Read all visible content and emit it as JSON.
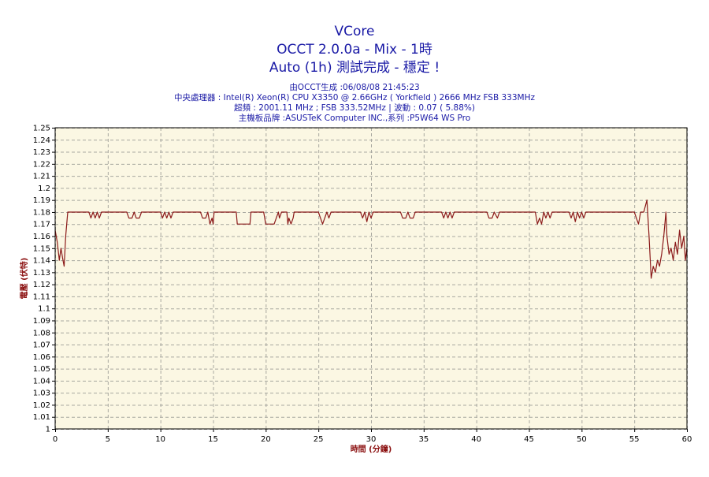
{
  "window": {
    "titles": [
      "VCore",
      "OCCT 2.0.0a - Mix - 1時",
      "Auto (1h) 測試完成 - 穩定 !"
    ],
    "info_lines": [
      "由OCCT生成 :06/08/08 21:45:23",
      "中央處理器 : Intel(R) Xeon(R) CPU X3350 @ 2.66GHz ( Yorkfield ) 2666 MHz FSB 333MHz",
      "超頻 : 2001.11 MHz ; FSB 333.52MHz | 波動 : 0.07 ( 5.88%)",
      "主機板品牌 :ASUSTeK Computer INC.,系列 :P5W64 WS Pro"
    ]
  },
  "colors": {
    "plot_bg": "#fbf7e3",
    "grid": "#a8a8a0",
    "line": "#8b1a1a",
    "title": "#1a1aa6",
    "axis_label": "#8b1010"
  },
  "chart_data": {
    "type": "line",
    "title": "VCore",
    "xlabel": "時間 (分鐘)",
    "ylabel": "電壓 (伏特)",
    "xlim": [
      0,
      60
    ],
    "ylim": [
      1.0,
      1.25
    ],
    "x_ticks": [
      0,
      5,
      10,
      15,
      20,
      25,
      30,
      35,
      40,
      45,
      50,
      55,
      60
    ],
    "x_tick_labels": [
      "0",
      "5",
      "10",
      "15",
      "20",
      "25",
      "30",
      "35",
      "40",
      "45",
      "50",
      "55",
      "60"
    ],
    "y_ticks": [
      1.0,
      1.01,
      1.02,
      1.03,
      1.04,
      1.05,
      1.06,
      1.07,
      1.08,
      1.09,
      1.1,
      1.11,
      1.12,
      1.13,
      1.14,
      1.15,
      1.16,
      1.17,
      1.18,
      1.19,
      1.2,
      1.21,
      1.22,
      1.23,
      1.24,
      1.25
    ],
    "y_tick_labels": [
      "1",
      "1.01",
      "1.02",
      "1.03",
      "1.04",
      "1.05",
      "1.06",
      "1.07",
      "1.08",
      "1.09",
      "1.1",
      "1.11",
      "1.12",
      "1.13",
      "1.14",
      "1.15",
      "1.16",
      "1.17",
      "1.18",
      "1.19",
      "1.2",
      "1.21",
      "1.22",
      "1.23",
      "1.24",
      "1.25"
    ],
    "grid": true,
    "series": [
      {
        "values": [
          [
            0.0,
            1.165
          ],
          [
            0.2,
            1.155
          ],
          [
            0.4,
            1.14
          ],
          [
            0.55,
            1.15
          ],
          [
            0.7,
            1.142
          ],
          [
            0.85,
            1.135
          ],
          [
            1.0,
            1.16
          ],
          [
            1.1,
            1.17
          ],
          [
            1.2,
            1.18
          ],
          [
            3.2,
            1.18
          ],
          [
            3.4,
            1.175
          ],
          [
            3.6,
            1.18
          ],
          [
            3.8,
            1.175
          ],
          [
            4.0,
            1.18
          ],
          [
            4.2,
            1.175
          ],
          [
            4.4,
            1.18
          ],
          [
            6.8,
            1.18
          ],
          [
            7.0,
            1.175
          ],
          [
            7.3,
            1.175
          ],
          [
            7.5,
            1.18
          ],
          [
            7.7,
            1.175
          ],
          [
            8.0,
            1.175
          ],
          [
            8.2,
            1.18
          ],
          [
            10.0,
            1.18
          ],
          [
            10.2,
            1.175
          ],
          [
            10.4,
            1.18
          ],
          [
            10.6,
            1.175
          ],
          [
            10.8,
            1.18
          ],
          [
            11.0,
            1.175
          ],
          [
            11.2,
            1.18
          ],
          [
            13.8,
            1.18
          ],
          [
            14.0,
            1.175
          ],
          [
            14.3,
            1.175
          ],
          [
            14.5,
            1.18
          ],
          [
            14.7,
            1.17
          ],
          [
            14.9,
            1.175
          ],
          [
            15.0,
            1.17
          ],
          [
            15.1,
            1.18
          ],
          [
            17.2,
            1.18
          ],
          [
            17.3,
            1.17
          ],
          [
            18.5,
            1.17
          ],
          [
            18.6,
            1.18
          ],
          [
            19.8,
            1.18
          ],
          [
            20.0,
            1.17
          ],
          [
            20.8,
            1.17
          ],
          [
            21.0,
            1.175
          ],
          [
            21.2,
            1.18
          ],
          [
            21.3,
            1.175
          ],
          [
            21.5,
            1.18
          ],
          [
            22.0,
            1.18
          ],
          [
            22.1,
            1.17
          ],
          [
            22.2,
            1.175
          ],
          [
            22.4,
            1.17
          ],
          [
            22.6,
            1.175
          ],
          [
            22.7,
            1.18
          ],
          [
            25.0,
            1.18
          ],
          [
            25.2,
            1.175
          ],
          [
            25.4,
            1.17
          ],
          [
            25.6,
            1.175
          ],
          [
            25.8,
            1.18
          ],
          [
            26.0,
            1.175
          ],
          [
            26.2,
            1.18
          ],
          [
            29.0,
            1.18
          ],
          [
            29.2,
            1.175
          ],
          [
            29.4,
            1.18
          ],
          [
            29.6,
            1.172
          ],
          [
            29.8,
            1.18
          ],
          [
            30.0,
            1.175
          ],
          [
            30.2,
            1.18
          ],
          [
            32.8,
            1.18
          ],
          [
            33.0,
            1.175
          ],
          [
            33.3,
            1.175
          ],
          [
            33.5,
            1.18
          ],
          [
            33.7,
            1.175
          ],
          [
            34.0,
            1.175
          ],
          [
            34.2,
            1.18
          ],
          [
            36.7,
            1.18
          ],
          [
            36.9,
            1.175
          ],
          [
            37.1,
            1.18
          ],
          [
            37.3,
            1.175
          ],
          [
            37.5,
            1.18
          ],
          [
            37.7,
            1.175
          ],
          [
            37.9,
            1.18
          ],
          [
            41.0,
            1.18
          ],
          [
            41.2,
            1.175
          ],
          [
            41.5,
            1.175
          ],
          [
            41.7,
            1.18
          ],
          [
            42.0,
            1.175
          ],
          [
            42.2,
            1.18
          ],
          [
            45.6,
            1.18
          ],
          [
            45.8,
            1.17
          ],
          [
            46.0,
            1.175
          ],
          [
            46.2,
            1.17
          ],
          [
            46.4,
            1.18
          ],
          [
            46.6,
            1.175
          ],
          [
            46.8,
            1.18
          ],
          [
            47.0,
            1.175
          ],
          [
            47.2,
            1.18
          ],
          [
            48.8,
            1.18
          ],
          [
            49.0,
            1.175
          ],
          [
            49.2,
            1.18
          ],
          [
            49.4,
            1.172
          ],
          [
            49.6,
            1.18
          ],
          [
            49.8,
            1.175
          ],
          [
            50.0,
            1.18
          ],
          [
            50.2,
            1.175
          ],
          [
            50.4,
            1.18
          ],
          [
            55.0,
            1.18
          ],
          [
            55.2,
            1.175
          ],
          [
            55.4,
            1.17
          ],
          [
            55.6,
            1.18
          ],
          [
            55.9,
            1.18
          ],
          [
            56.2,
            1.19
          ],
          [
            56.4,
            1.16
          ],
          [
            56.6,
            1.125
          ],
          [
            56.8,
            1.135
          ],
          [
            57.0,
            1.13
          ],
          [
            57.2,
            1.14
          ],
          [
            57.4,
            1.135
          ],
          [
            57.6,
            1.145
          ],
          [
            57.8,
            1.16
          ],
          [
            58.0,
            1.18
          ],
          [
            58.1,
            1.16
          ],
          [
            58.3,
            1.145
          ],
          [
            58.5,
            1.15
          ],
          [
            58.7,
            1.14
          ],
          [
            58.9,
            1.155
          ],
          [
            59.1,
            1.145
          ],
          [
            59.3,
            1.165
          ],
          [
            59.5,
            1.15
          ],
          [
            59.7,
            1.16
          ],
          [
            59.85,
            1.14
          ],
          [
            60.0,
            1.15
          ]
        ]
      }
    ]
  }
}
